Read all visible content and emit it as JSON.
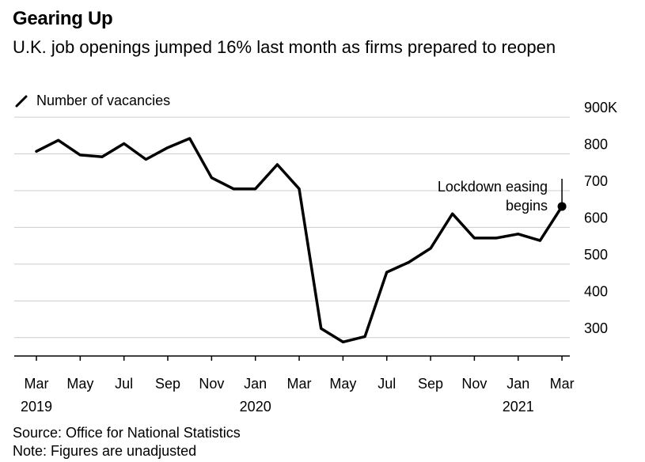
{
  "title": "Gearing Up",
  "subtitle": "U.K. job openings jumped 16% last month as firms prepared to reopen",
  "legend": {
    "label": "Number of vacancies"
  },
  "chart_data": {
    "type": "line",
    "x": [
      "2019-03",
      "2019-04",
      "2019-05",
      "2019-06",
      "2019-07",
      "2019-08",
      "2019-09",
      "2019-10",
      "2019-11",
      "2019-12",
      "2020-01",
      "2020-02",
      "2020-03",
      "2020-04",
      "2020-05",
      "2020-06",
      "2020-07",
      "2020-08",
      "2020-09",
      "2020-10",
      "2020-11",
      "2020-12",
      "2021-01",
      "2021-02",
      "2021-03"
    ],
    "series": [
      {
        "values": [
          807,
          837,
          797,
          792,
          828,
          785,
          817,
          842,
          735,
          705,
          705,
          771,
          705,
          325,
          288,
          303,
          478,
          505,
          543,
          637,
          571,
          571,
          582,
          564,
          657
        ]
      }
    ],
    "ylim": [
      250,
      900
    ],
    "y_ticks": [
      "300",
      "400",
      "500",
      "600",
      "700",
      "800",
      "900K"
    ],
    "x_month_labels": [
      "Mar",
      "May",
      "Jul",
      "Sep",
      "Nov",
      "Jan",
      "Mar",
      "May",
      "Jul",
      "Sep",
      "Nov",
      "Jan",
      "Mar"
    ],
    "x_year_labels": [
      "2019",
      "2020",
      "2021"
    ],
    "annotation": {
      "text_line1": "Lockdown easing",
      "text_line2": "begins",
      "x": "2021-03",
      "y": 657
    },
    "grid": true,
    "legend_position": "top-left",
    "line_color": "#000000",
    "grid_color": "#cccccc"
  },
  "footer": {
    "source": "Source: Office for National Statistics",
    "note": "Note: Figures are unadjusted"
  }
}
